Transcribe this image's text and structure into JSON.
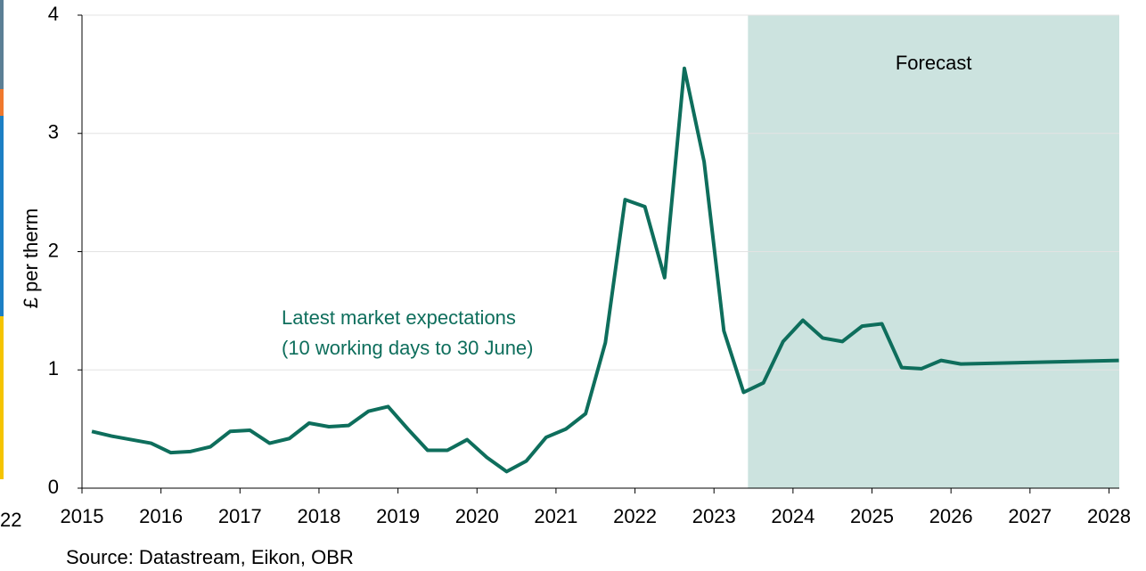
{
  "chart_data": {
    "type": "line",
    "ylabel": "£ per therm",
    "source": "Source: Datastream, Eikon, OBR",
    "annotation": [
      "Latest market expectations",
      "(10 working days to 30 June)"
    ],
    "forecast_label": "Forecast",
    "forecast_start": 2023.43,
    "forecast_color": "#cce3df",
    "left_fragment_label": "22",
    "xlim": [
      2015,
      2028.13
    ],
    "ylim": [
      0,
      4
    ],
    "xticks": [
      2015,
      2016,
      2017,
      2018,
      2019,
      2020,
      2021,
      2022,
      2023,
      2024,
      2025,
      2026,
      2027,
      2028
    ],
    "yticks": [
      0,
      1,
      2,
      3,
      4
    ],
    "grid": true,
    "x": [
      2015.125,
      2015.375,
      2015.625,
      2015.875,
      2016.125,
      2016.375,
      2016.625,
      2016.875,
      2017.125,
      2017.375,
      2017.625,
      2017.875,
      2018.125,
      2018.375,
      2018.625,
      2018.875,
      2019.125,
      2019.375,
      2019.625,
      2019.875,
      2020.125,
      2020.375,
      2020.625,
      2020.875,
      2021.125,
      2021.375,
      2021.625,
      2021.875,
      2022.125,
      2022.375,
      2022.625,
      2022.875,
      2023.125,
      2023.375,
      2023.625,
      2023.875,
      2024.125,
      2024.375,
      2024.625,
      2024.875,
      2025.125,
      2025.375,
      2025.625,
      2025.875,
      2026.125,
      2028.125
    ],
    "series": [
      {
        "name": "Latest market expectations",
        "color": "#0e6e5c",
        "values": [
          0.48,
          0.44,
          0.41,
          0.38,
          0.3,
          0.31,
          0.35,
          0.48,
          0.49,
          0.38,
          0.42,
          0.55,
          0.52,
          0.53,
          0.65,
          0.69,
          0.5,
          0.32,
          0.32,
          0.41,
          0.26,
          0.14,
          0.23,
          0.43,
          0.5,
          0.63,
          1.23,
          2.44,
          2.38,
          1.78,
          3.55,
          2.76,
          1.33,
          0.81,
          0.89,
          1.24,
          1.42,
          1.27,
          1.24,
          1.37,
          1.39,
          1.02,
          1.01,
          1.08,
          1.05,
          1.08
        ]
      }
    ]
  }
}
